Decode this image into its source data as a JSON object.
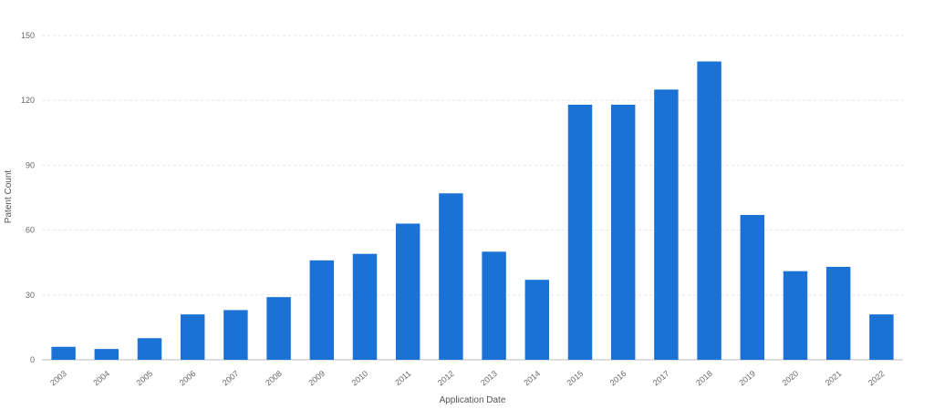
{
  "chart_data": {
    "type": "bar",
    "xlabel": "Application Date",
    "ylabel": "Patent Count",
    "ylim": [
      0,
      150
    ],
    "yticks": [
      0,
      30,
      60,
      90,
      120,
      150
    ],
    "grid": true,
    "legend": "none",
    "bar_color": "#1a73d4",
    "categories": [
      "2003",
      "2004",
      "2005",
      "2006",
      "2007",
      "2008",
      "2009",
      "2010",
      "2011",
      "2012",
      "2013",
      "2014",
      "2015",
      "2016",
      "2017",
      "2018",
      "2019",
      "2020",
      "2021",
      "2022"
    ],
    "values": [
      6,
      5,
      10,
      21,
      23,
      29,
      46,
      49,
      63,
      77,
      50,
      37,
      118,
      118,
      125,
      138,
      67,
      41,
      43,
      21
    ]
  }
}
